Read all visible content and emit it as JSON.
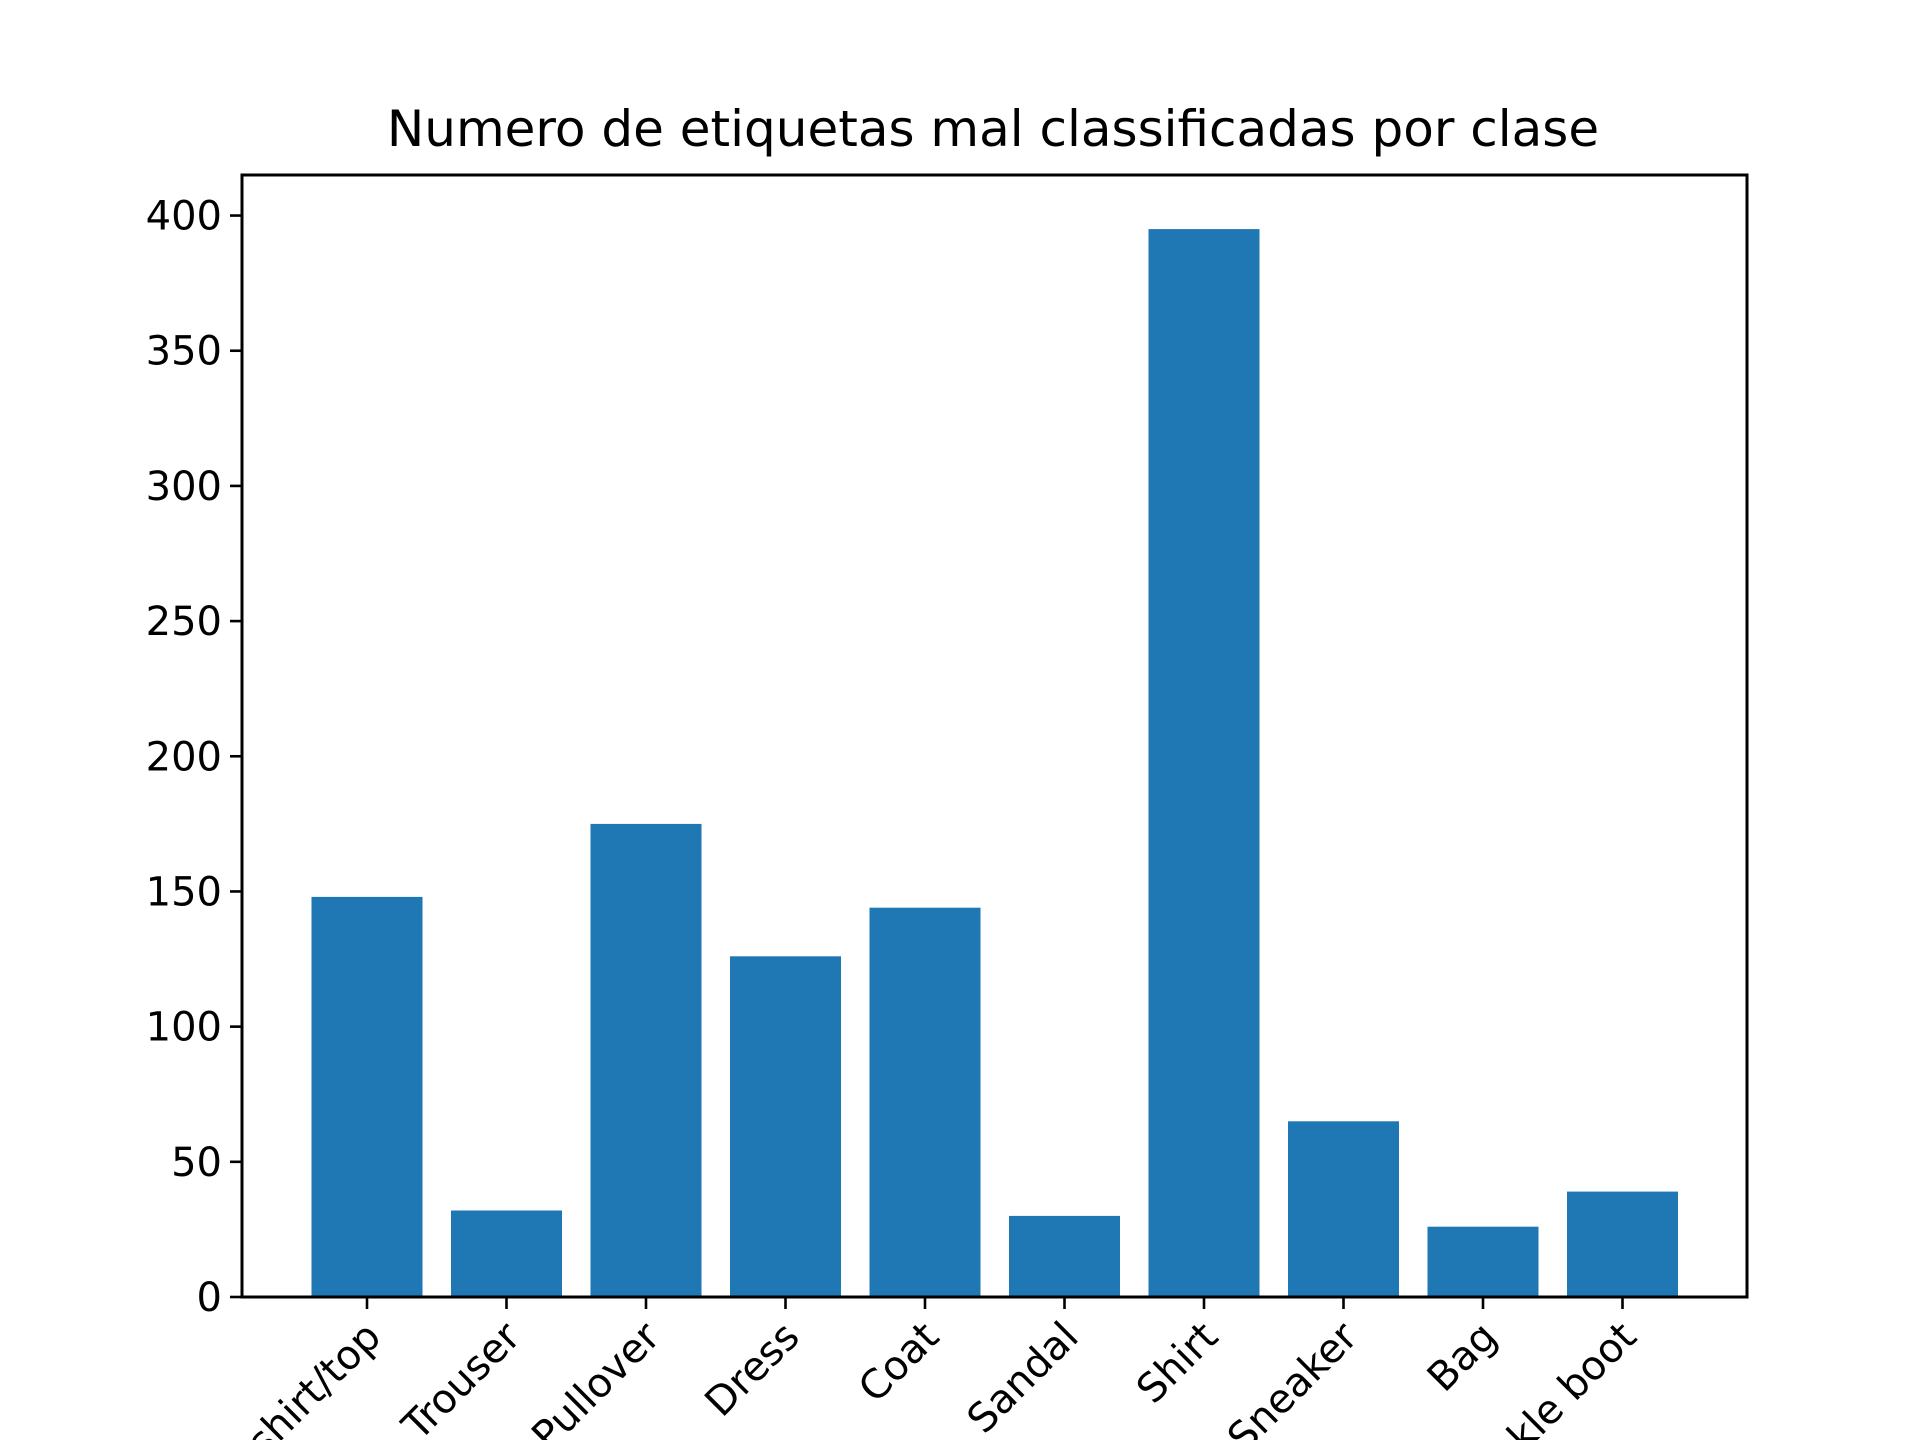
{
  "chart_data": {
    "type": "bar",
    "title": "Numero de etiquetas mal classificadas por clase",
    "xlabel": "",
    "ylabel": "",
    "categories": [
      "T-shirt/top",
      "Trouser",
      "Pullover",
      "Dress",
      "Coat",
      "Sandal",
      "Shirt",
      "Sneaker",
      "Bag",
      "Ankle boot"
    ],
    "values": [
      148,
      32,
      175,
      126,
      144,
      30,
      395,
      65,
      26,
      39
    ],
    "ylim": [
      0,
      415
    ],
    "yticks": [
      0,
      50,
      100,
      150,
      200,
      250,
      300,
      350,
      400
    ],
    "xtick_rotation_deg": 45,
    "grid": false,
    "legend": "none",
    "colors": {
      "bar": "#1f77b4",
      "axis": "#000000",
      "background": "#ffffff"
    }
  }
}
